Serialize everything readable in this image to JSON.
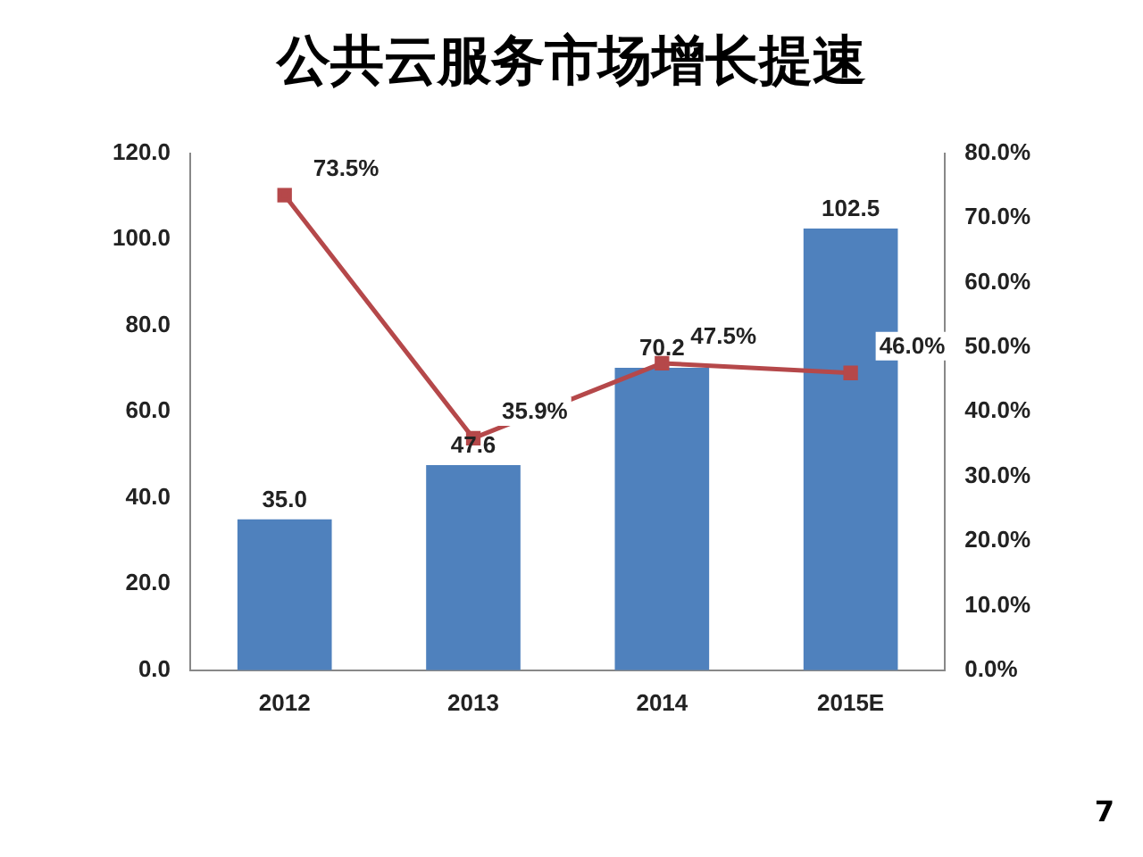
{
  "chart_data": {
    "type": "bar",
    "title": "公共云服务市场增长提速",
    "categories": [
      "2012",
      "2013",
      "2014",
      "2015E"
    ],
    "series": [
      {
        "color": "#4f81bd",
        "values": [
          35.0,
          47.6,
          70.2,
          102.5
        ],
        "value_labels": [
          "35.0",
          "47.6",
          "70.2",
          "102.5"
        ]
      },
      {
        "type": "line",
        "axis": "y2",
        "color": "#b5484a",
        "marker": "square",
        "values": [
          73.5,
          35.9,
          47.5,
          46.0
        ],
        "value_labels": [
          "73.5%",
          "35.9%",
          "47.5%",
          "46.0%"
        ]
      }
    ],
    "ylim": [
      0,
      120
    ],
    "yticks": [
      {
        "value": 0,
        "label": "0.0"
      },
      {
        "value": 20,
        "label": "20.0"
      },
      {
        "value": 40,
        "label": "40.0"
      },
      {
        "value": 60,
        "label": "60.0"
      },
      {
        "value": 80,
        "label": "80.0"
      },
      {
        "value": 100,
        "label": "100.0"
      },
      {
        "value": 120,
        "label": "120.0"
      }
    ],
    "y2lim": [
      0,
      80
    ],
    "y2ticks": [
      {
        "value": 0,
        "label": "0.0%"
      },
      {
        "value": 10,
        "label": "10.0%"
      },
      {
        "value": 20,
        "label": "20.0%"
      },
      {
        "value": 30,
        "label": "30.0%"
      },
      {
        "value": 40,
        "label": "40.0%"
      },
      {
        "value": 50,
        "label": "50.0%"
      },
      {
        "value": 60,
        "label": "60.0%"
      },
      {
        "value": 70,
        "label": "70.0%"
      },
      {
        "value": 80,
        "label": "80.0%"
      }
    ],
    "grid": false,
    "legend": false,
    "annotations": [
      "7"
    ]
  }
}
